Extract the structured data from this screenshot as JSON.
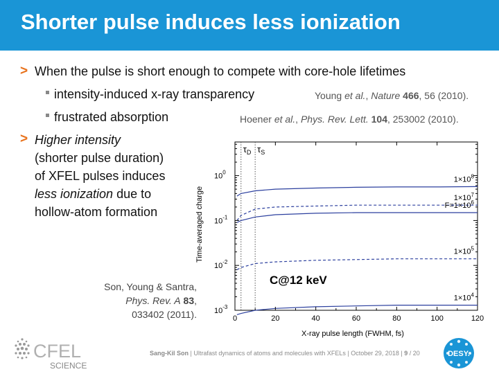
{
  "header": {
    "title": "Shorter pulse induces less ionization",
    "bg_color": "#1a95d6"
  },
  "bullets": {
    "main1": "When the pulse is short enough to compete with core-hole lifetimes",
    "sub1": "intensity-induced x-ray transparency",
    "sub2": "frustrated absorption",
    "ref1": {
      "authors": "Young ",
      "etal": "et al.",
      "comma": ", ",
      "journal": "Nature",
      "volume": "466",
      "rest": ", 56 (2010)."
    },
    "ref2": {
      "authors": "Hoener ",
      "etal": "et al.",
      "comma": ", ",
      "journal": "Phys. Rev. Lett.",
      "volume": "104",
      "rest": ", 253002 (2010)."
    },
    "main2_line1": "Higher intensity",
    "main2_line2": "(shorter pulse duration)",
    "main2_line3": "of XFEL pulses induces",
    "main2_line4_it": "less ionization",
    "main2_line4_rest": " due to",
    "main2_line5": "hollow-atom formation",
    "arrow_color": "#e8721c"
  },
  "citation": {
    "line1": "Son, Young & Santra,",
    "journal": "Phys. Rev. A",
    "volume": "83",
    "line2_end": ",",
    "line3": "033402 (2011)."
  },
  "footer": {
    "author": "Sang-Kil Son",
    "sep1": " | ",
    "talk": "Ultrafast dynamics of atoms and molecules with XFELs",
    "sep2": " | ",
    "date": "October 29, 2018",
    "sep3": " | ",
    "page": "9",
    "total": " / 20"
  },
  "logos": {
    "cfel_top": "CFEL",
    "cfel_bottom": "SCIENCE",
    "desy": "DESY."
  },
  "chart_data": {
    "type": "line",
    "xlabel": "X-ray pulse length (FWHM, fs)",
    "ylabel": "Time-averaged charge",
    "xlim": [
      0,
      120
    ],
    "ylim_log10": [
      -3,
      0.75
    ],
    "yscale": "log",
    "x_ticks": [
      "0",
      "20",
      "40",
      "60",
      "80",
      "100",
      "120"
    ],
    "y_ticks": [
      {
        "base": "10",
        "exp": "0"
      },
      {
        "base": "10",
        "exp": "-1"
      },
      {
        "base": "10",
        "exp": "-2"
      },
      {
        "base": "10",
        "exp": "-3"
      }
    ],
    "vlines": [
      {
        "x": 3,
        "label": "τ",
        "sub": "D"
      },
      {
        "x": 10,
        "label": "τ",
        "sub": "S"
      }
    ],
    "annotation": "C@12 keV",
    "series": [
      {
        "name": "1×10⁸",
        "label": "1×10",
        "label_exp": "8",
        "style": "solid",
        "x": [
          1,
          3,
          10,
          20,
          40,
          60,
          80,
          100,
          120
        ],
        "y": [
          0.35,
          0.4,
          0.46,
          0.5,
          0.53,
          0.55,
          0.56,
          0.56,
          0.57
        ]
      },
      {
        "name": "1×10⁷",
        "label": "1×10",
        "label_exp": "7",
        "style": "dashed",
        "x": [
          1,
          3,
          10,
          20,
          40,
          60,
          80,
          100,
          120
        ],
        "y": [
          0.1,
          0.13,
          0.18,
          0.2,
          0.21,
          0.22,
          0.22,
          0.22,
          0.22
        ]
      },
      {
        "name": "F=1×10⁶",
        "label": "F=1×10",
        "label_exp": "6",
        "style": "solid",
        "x": [
          1,
          3,
          10,
          20,
          40,
          60,
          80,
          100,
          120
        ],
        "y": [
          0.09,
          0.1,
          0.12,
          0.135,
          0.145,
          0.15,
          0.15,
          0.15,
          0.15
        ]
      },
      {
        "name": "1×10⁵",
        "label": "1×10",
        "label_exp": "5",
        "style": "dashed",
        "x": [
          1,
          3,
          10,
          20,
          40,
          60,
          80,
          100,
          120
        ],
        "y": [
          0.008,
          0.009,
          0.011,
          0.012,
          0.013,
          0.0135,
          0.014,
          0.014,
          0.014
        ]
      },
      {
        "name": "1×10⁴",
        "label": "1×10",
        "label_exp": "4",
        "style": "solid",
        "x": [
          1,
          3,
          10,
          20,
          40,
          60,
          80,
          100,
          120
        ],
        "y": [
          0.0008,
          0.00085,
          0.001,
          0.0011,
          0.0012,
          0.00125,
          0.0013,
          0.0013,
          0.0013
        ]
      }
    ],
    "line_color": "#2b3f9e"
  }
}
